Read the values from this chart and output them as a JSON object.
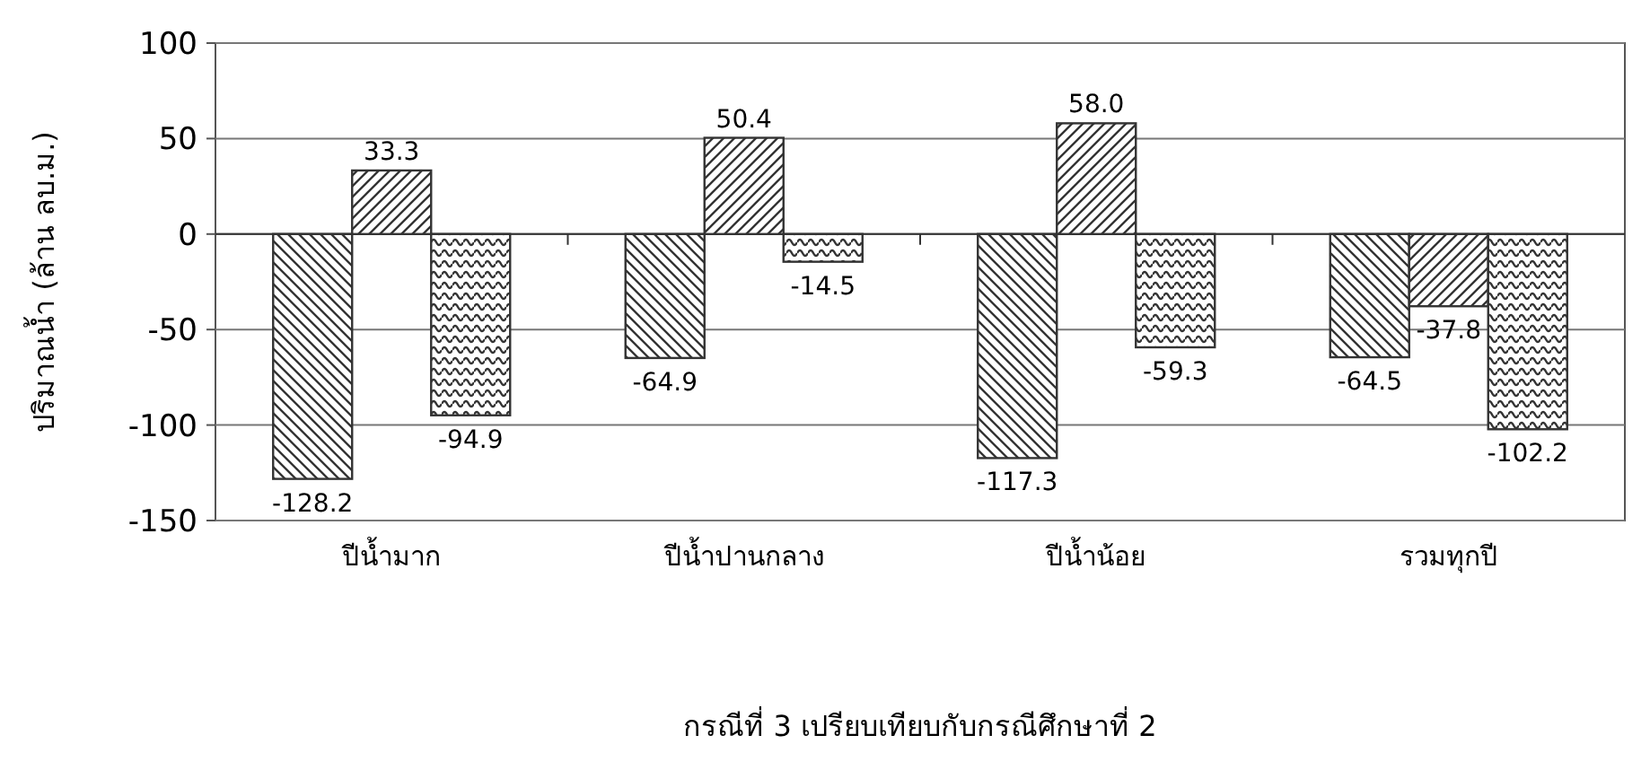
{
  "chart_data": {
    "type": "bar",
    "xlabel": "กรณีที่ 3 เปรียบเทียบกับกรณีศึกษาที่ 2",
    "ylabel": "ปริมาณน้ำ (ล้าน ลบ.ม.)",
    "categories": [
      "ปีน้ำมาก",
      "ปีน้ำปานกลาง",
      "ปีน้ำน้อย",
      "รวมทุกปี"
    ],
    "series": [
      {
        "color": "#333333",
        "values": [
          -128.2,
          -64.9,
          -117.3,
          -64.5
        ],
        "value_labels": [
          "-128.2",
          "-64.9",
          "-117.3",
          "-64.5"
        ]
      },
      {
        "color": "#333333",
        "values": [
          33.3,
          50.4,
          58.0,
          -37.8
        ],
        "value_labels": [
          "33.3",
          "50.4",
          "58.0",
          "-37.8"
        ]
      },
      {
        "color": "#333333",
        "values": [
          -94.9,
          -14.5,
          -59.3,
          -102.2
        ],
        "value_labels": [
          "-94.9",
          "-14.5",
          "-59.3",
          "-102.2"
        ]
      }
    ],
    "ylim": [
      -150,
      100
    ],
    "yticks": [
      -150,
      -100,
      -50,
      0,
      50,
      100
    ],
    "grid": "y"
  }
}
